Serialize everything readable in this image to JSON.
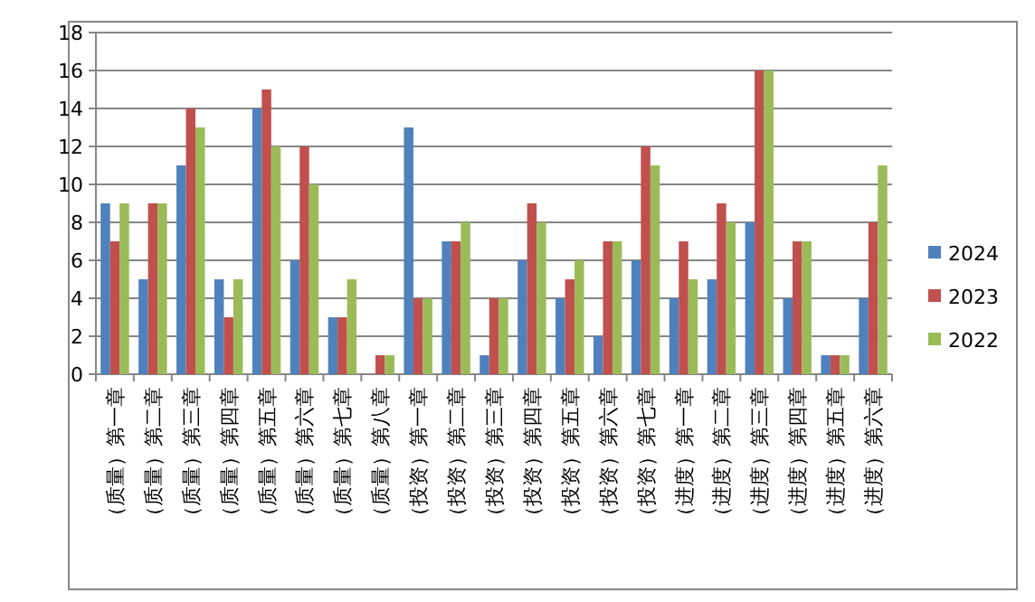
{
  "chart_data": {
    "type": "bar",
    "categories": [
      "（质量）第一章",
      "（质量）第二章",
      "（质量）第三章",
      "（质量）第四章",
      "（质量）第五章",
      "（质量）第六章",
      "（质量）第七章",
      "（质量）第八章",
      "（投资）第一章",
      "（投资）第二章",
      "（投资）第三章",
      "（投资）第四章",
      "（投资）第五章",
      "（投资）第六章",
      "（投资）第七章",
      "（进度）第一章",
      "（进度）第二章",
      "（进度）第三章",
      "（进度）第四章",
      "（进度）第五章",
      "（进度）第六章"
    ],
    "series": [
      {
        "name": "2024",
        "color": "#4f81bd",
        "values": [
          9,
          5,
          11,
          5,
          14,
          6,
          3,
          0,
          13,
          7,
          1,
          6,
          4,
          2,
          6,
          4,
          5,
          8,
          4,
          1,
          4
        ]
      },
      {
        "name": "2023",
        "color": "#c0504d",
        "values": [
          7,
          9,
          14,
          3,
          15,
          12,
          3,
          1,
          4,
          7,
          4,
          9,
          5,
          7,
          12,
          7,
          9,
          16,
          7,
          1,
          8
        ]
      },
      {
        "name": "2022",
        "color": "#9bbb59",
        "values": [
          9,
          9,
          13,
          5,
          12,
          10,
          5,
          1,
          4,
          8,
          4,
          8,
          6,
          7,
          11,
          5,
          8,
          16,
          7,
          1,
          11
        ]
      }
    ],
    "ylim": [
      0,
      18
    ],
    "yticks": [
      0,
      2,
      4,
      6,
      8,
      10,
      12,
      14,
      16,
      18
    ],
    "grid": "y",
    "legend": "right"
  }
}
